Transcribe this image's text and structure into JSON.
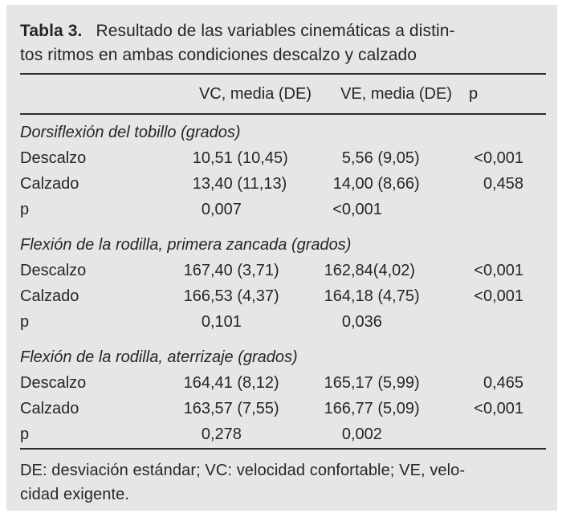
{
  "title": {
    "label": "Tabla 3.",
    "line1": "Resultado de las variables cinemáticas a distin-",
    "line2": "tos ritmos en ambas condiciones descalzo y calzado"
  },
  "table": {
    "columns": {
      "label": "",
      "vc": "VC, media (DE)",
      "ve": "VE, media (DE)",
      "p": "p"
    },
    "sections": [
      {
        "heading": "Dorsiflexión del tobillo (grados)",
        "rows": [
          {
            "label": "Descalzo",
            "vc": "10,51 (10,45)",
            "ve": "5,56 (9,05)",
            "p": "<0,001"
          },
          {
            "label": "Calzado",
            "vc": "13,40 (11,13)",
            "ve": "14,00 (8,66)",
            "p": "0,458"
          },
          {
            "label": "p",
            "vc": "0,007",
            "ve": "<0,001",
            "p": ""
          }
        ]
      },
      {
        "heading": "Flexión de la rodilla, primera zancada (grados)",
        "rows": [
          {
            "label": "Descalzo",
            "vc": "167,40 (3,71)",
            "ve": "162,84(4,02)",
            "p": "<0,001"
          },
          {
            "label": "Calzado",
            "vc": "166,53 (4,37)",
            "ve": "164,18 (4,75)",
            "p": "<0,001"
          },
          {
            "label": "p",
            "vc": "0,101",
            "ve": "0,036",
            "p": ""
          }
        ]
      },
      {
        "heading": "Flexión de la rodilla, aterrizaje (grados)",
        "rows": [
          {
            "label": "Descalzo",
            "vc": "164,41 (8,12)",
            "ve": "165,17 (5,99)",
            "p": "0,465"
          },
          {
            "label": "Calzado",
            "vc": "163,57 (7,55)",
            "ve": "166,77 (5,09)",
            "p": "<0,001"
          },
          {
            "label": "p",
            "vc": "0,278",
            "ve": "0,002",
            "p": ""
          }
        ]
      }
    ]
  },
  "footnote": {
    "line1": "DE: desviación estándar; VC: velocidad confortable; VE, velo-",
    "line2": "cidad exigente."
  },
  "colors": {
    "card_bg": "#e6e6e4",
    "text": "#262626",
    "rule": "#2e2e2e"
  }
}
